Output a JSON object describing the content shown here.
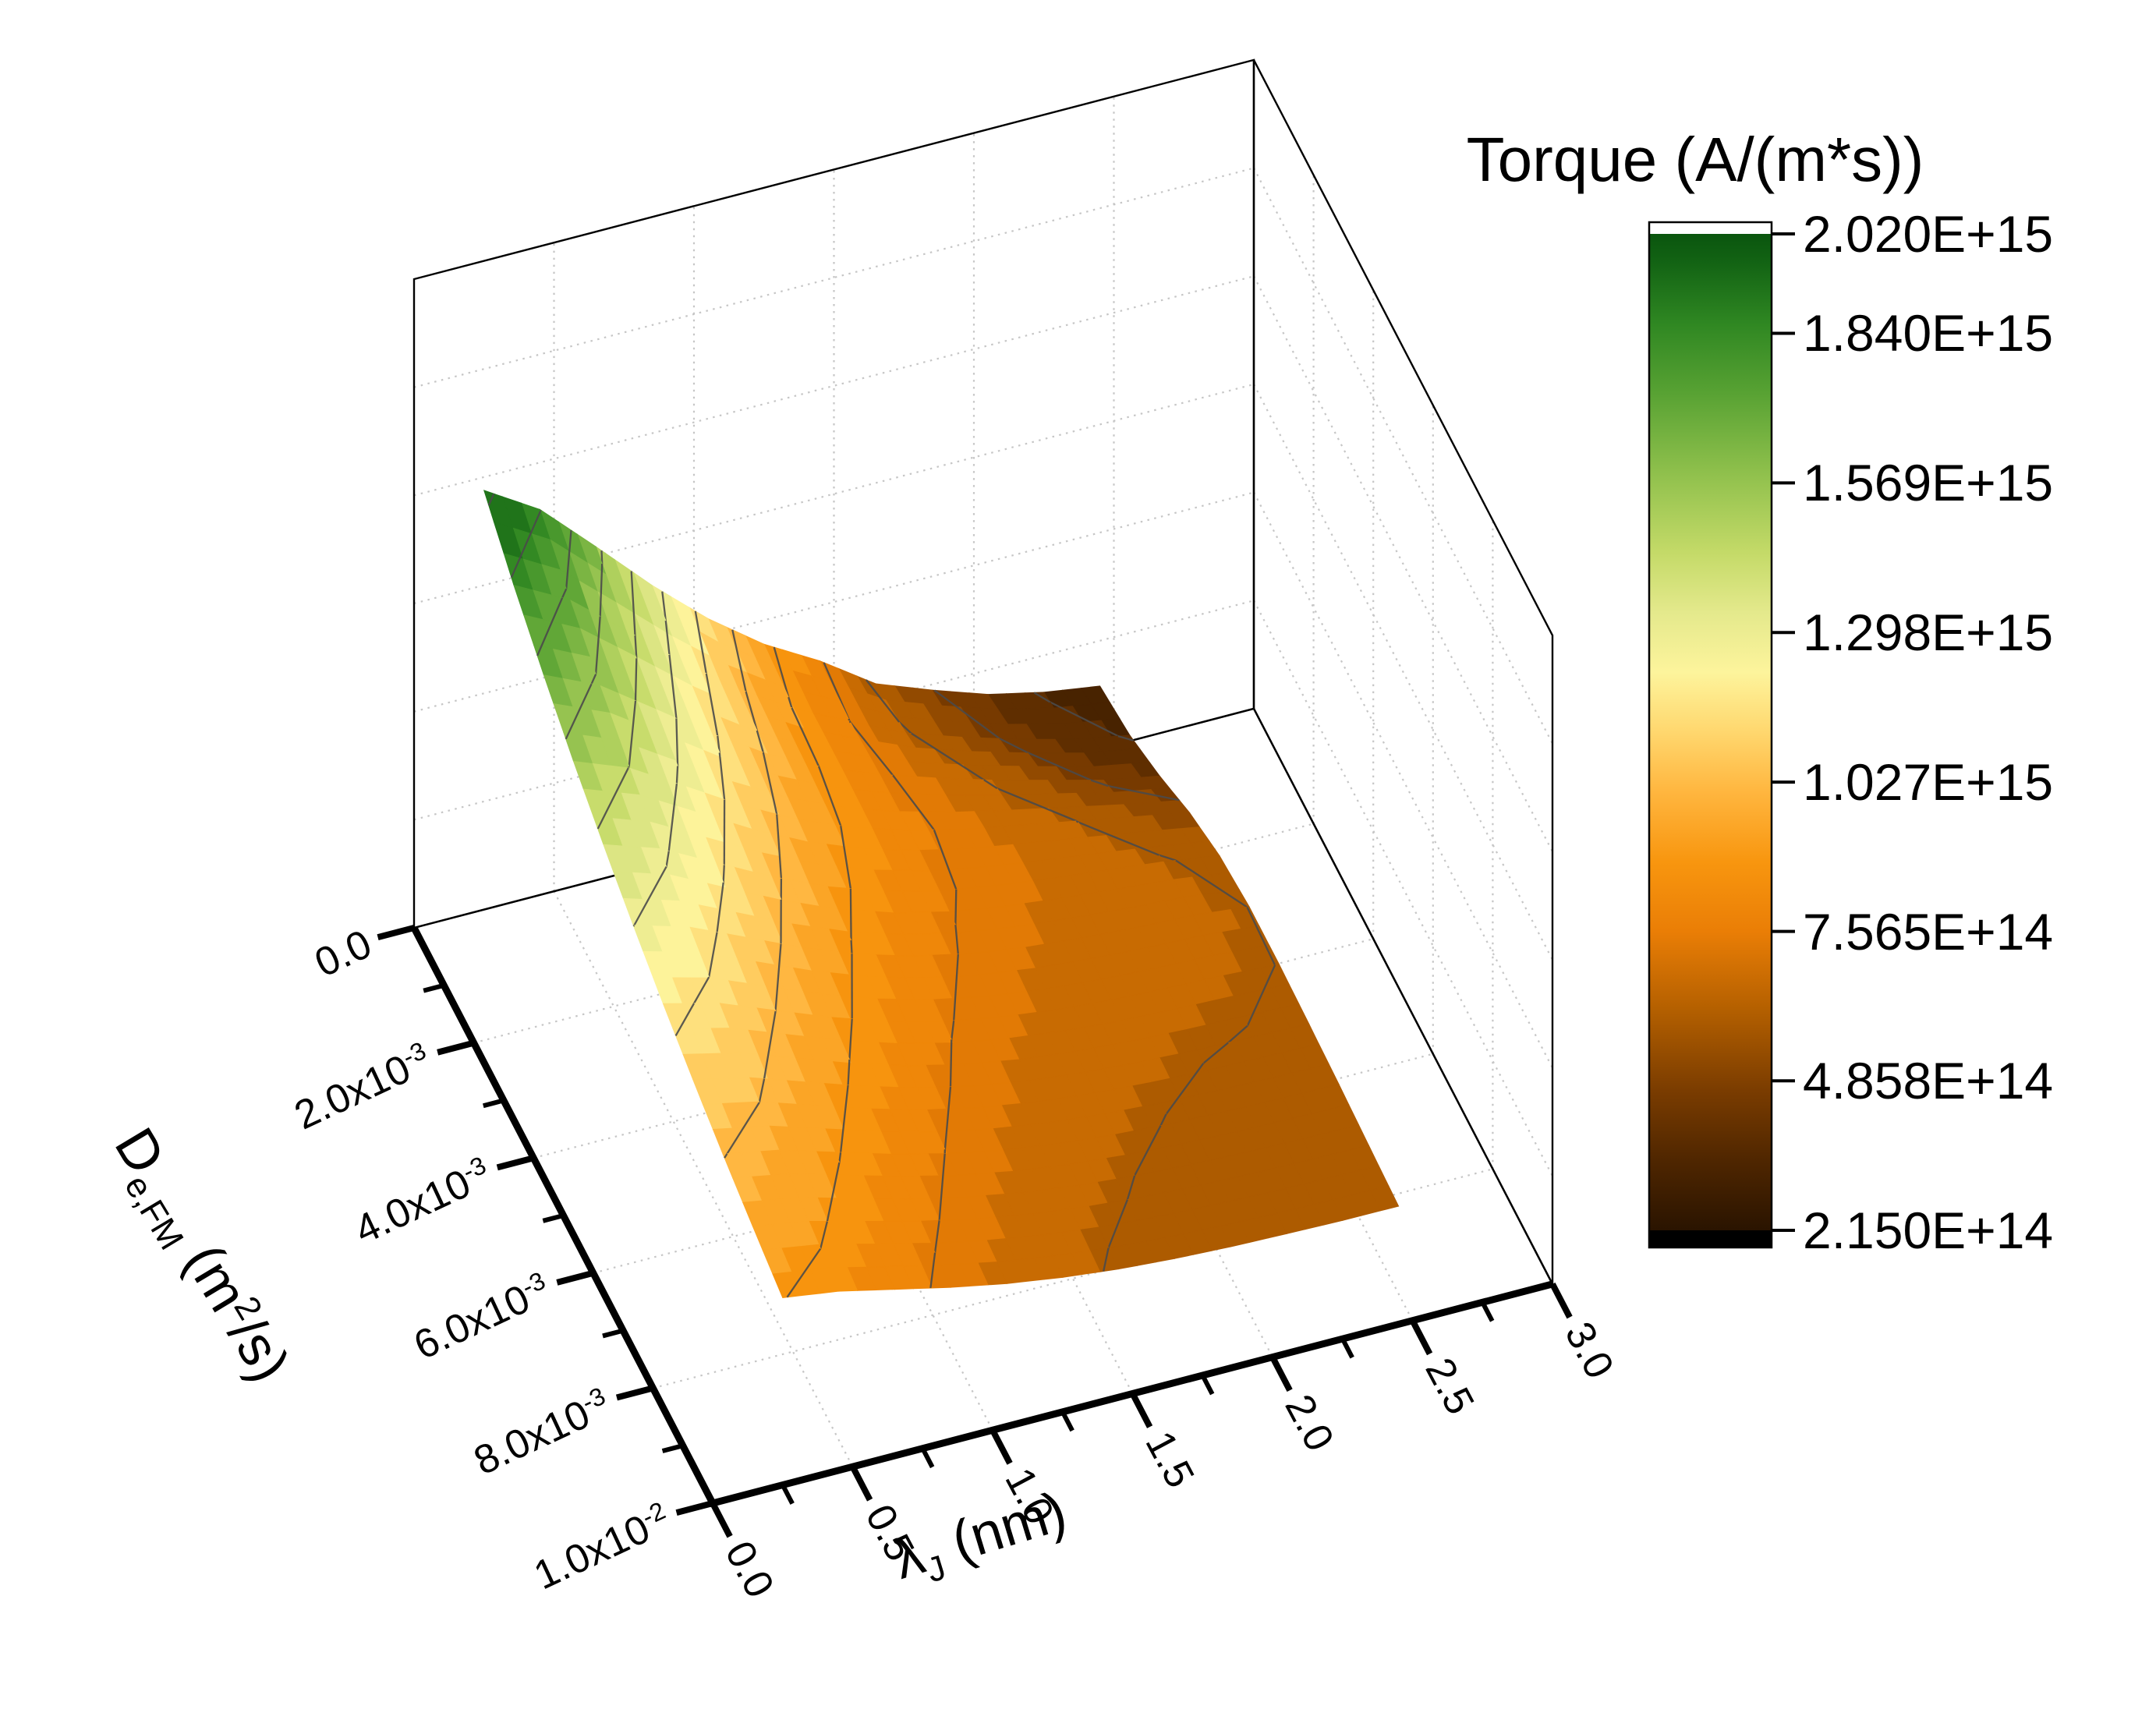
{
  "page": {
    "background": "#ffffff"
  },
  "chart_data": {
    "type": "surface3d",
    "title": "Torque (A/(m*s))",
    "colorbar": {
      "title": "Torque (A/(m*s))",
      "tick_labels": [
        "2.020E+15",
        "1.840E+15",
        "1.569E+15",
        "1.298E+15",
        "1.027E+15",
        "7.565E+14",
        "4.858E+14",
        "2.150E+14"
      ],
      "tick_values": [
        2020000000000000.0,
        1840000000000000.0,
        1569000000000000.0,
        1298000000000000.0,
        1027000000000000.0,
        756500000000000.0,
        485800000000000.0,
        215000000000000.0
      ],
      "range": [
        215000000000000.0,
        2020000000000000.0
      ],
      "top_cap_color": "#ffffff",
      "bottom_cap_color": "#000000",
      "colormap": [
        [
          0.0,
          "#2a1400"
        ],
        [
          0.07,
          "#4f2600"
        ],
        [
          0.14,
          "#7a3c00"
        ],
        [
          0.22,
          "#b35f00"
        ],
        [
          0.3,
          "#ea7e06"
        ],
        [
          0.37,
          "#f8960f"
        ],
        [
          0.44,
          "#ffb63f"
        ],
        [
          0.5,
          "#ffd76e"
        ],
        [
          0.56,
          "#fdf49c"
        ],
        [
          0.62,
          "#e4e98c"
        ],
        [
          0.68,
          "#c4da68"
        ],
        [
          0.76,
          "#8fc04c"
        ],
        [
          0.84,
          "#58a233"
        ],
        [
          0.91,
          "#2f8722"
        ],
        [
          0.97,
          "#136414"
        ],
        [
          1.0,
          "#0a550e"
        ]
      ]
    },
    "lambda_axis": {
      "title_parts": [
        {
          "t": "λ"
        },
        {
          "t": "J",
          "sub": true
        },
        {
          "t": " (nm)"
        }
      ],
      "range": [
        0,
        3
      ],
      "ticks": [
        {
          "label": "0.0",
          "value": 0.0
        },
        {
          "label": "0.5",
          "value": 0.5
        },
        {
          "label": "1.0",
          "value": 1.0
        },
        {
          "label": "1.5",
          "value": 1.5
        },
        {
          "label": "2.0",
          "value": 2.0
        },
        {
          "label": "2.5",
          "value": 2.5
        },
        {
          "label": "3.0",
          "value": 3.0
        }
      ],
      "minor_values": [
        0.25,
        0.75,
        1.25,
        1.75,
        2.25,
        2.75
      ],
      "grid_values": [
        0.5,
        1.0,
        1.5,
        2.0,
        2.5
      ]
    },
    "d_axis": {
      "title_parts": [
        {
          "t": "D"
        },
        {
          "t": "e,FM",
          "sub": true
        },
        {
          "t": " (m"
        },
        {
          "t": "2",
          "sup": true
        },
        {
          "t": "/s)"
        }
      ],
      "range": [
        0,
        0.01
      ],
      "ticks": [
        {
          "base": "0.0",
          "exp": "",
          "value": 0
        },
        {
          "base": "2.0x10",
          "exp": "-3",
          "value": 0.002
        },
        {
          "base": "4.0x10",
          "exp": "-3",
          "value": 0.004
        },
        {
          "base": "6.0x10",
          "exp": "-3",
          "value": 0.006
        },
        {
          "base": "8.0x10",
          "exp": "-3",
          "value": 0.008
        },
        {
          "base": "1.0x10",
          "exp": "-2",
          "value": 0.01
        }
      ],
      "minor_values": [
        0.001,
        0.003,
        0.005,
        0.007,
        0.009
      ],
      "grid_values": [
        0.002,
        0.004,
        0.006,
        0.008
      ]
    },
    "z_axis": {
      "range": [
        0,
        3100000000000000.0
      ],
      "gridline_count": 5
    },
    "surface": {
      "units": "A/(m*s)",
      "torque_unit_scale": 100000000000000.0,
      "lambda_nm": [
        0.25,
        0.45,
        0.65,
        0.85,
        1.05,
        1.25,
        1.45,
        1.65,
        1.85,
        2.05,
        2.25,
        2.45
      ],
      "d_m2s": [
        0,
        0.001,
        0.002,
        0.003,
        0.004,
        0.005,
        0.006,
        0.007,
        0.008,
        0.009,
        0.01
      ],
      "torque_1e14": [
        [
          20.03,
          18.42,
          15.94,
          13.4,
          11.11,
          9.19,
          7.69,
          5.9,
          4.9,
          4.0,
          3.4,
          3.0
        ],
        [
          18.25,
          16.85,
          14.7,
          12.49,
          10.51,
          8.86,
          7.56,
          6.3,
          5.4,
          4.6,
          3.9,
          3.4
        ],
        [
          16.71,
          15.51,
          13.67,
          11.8,
          10.14,
          8.8,
          7.77,
          6.9,
          6.1,
          5.4,
          4.7,
          4.2
        ],
        [
          15.33,
          14.31,
          12.73,
          11.14,
          9.76,
          8.67,
          7.85,
          7.2,
          6.7,
          6.2,
          5.7,
          5.2
        ],
        [
          14.1,
          13.21,
          11.84,
          10.48,
          9.3,
          8.38,
          7.7,
          7.25,
          6.9,
          6.6,
          6.3,
          5.9
        ],
        [
          12.99,
          12.21,
          11.03,
          9.84,
          8.82,
          8.03,
          7.45,
          7.05,
          6.8,
          6.6,
          6.5,
          6.2
        ],
        [
          12.0,
          11.32,
          10.28,
          9.25,
          8.36,
          7.66,
          7.16,
          6.81,
          6.58,
          6.45,
          6.35,
          6.2
        ],
        [
          11.11,
          10.52,
          9.61,
          8.71,
          7.93,
          7.32,
          6.88,
          6.58,
          6.38,
          6.25,
          6.18,
          6.1
        ],
        [
          10.31,
          9.8,
          9.0,
          8.21,
          7.54,
          7.01,
          6.62,
          6.35,
          6.18,
          6.07,
          6.0,
          5.97
        ],
        [
          9.6,
          9.15,
          8.45,
          7.76,
          7.17,
          6.71,
          6.37,
          6.14,
          5.99,
          5.89,
          5.83,
          5.8
        ],
        [
          8.95,
          8.56,
          7.95,
          7.35,
          6.83,
          6.43,
          6.13,
          5.93,
          5.8,
          5.72,
          5.66,
          5.64
        ]
      ],
      "contour_levels_1e14": [
        3.504,
        4.858,
        6.211,
        7.565,
        8.919,
        10.273,
        11.626,
        12.98,
        14.334,
        15.687,
        17.041,
        18.395,
        19.749
      ],
      "peak": {
        "lambda_nm": 0.25,
        "d_m2s": 0,
        "torque": 2003000000000000.0
      },
      "min_shown": 300000000000000.0
    },
    "style": {
      "grid_color": "#c6c6c6",
      "box_color": "#000000",
      "contour_color": "#4a4a4a",
      "axis_color": "#000000"
    }
  }
}
